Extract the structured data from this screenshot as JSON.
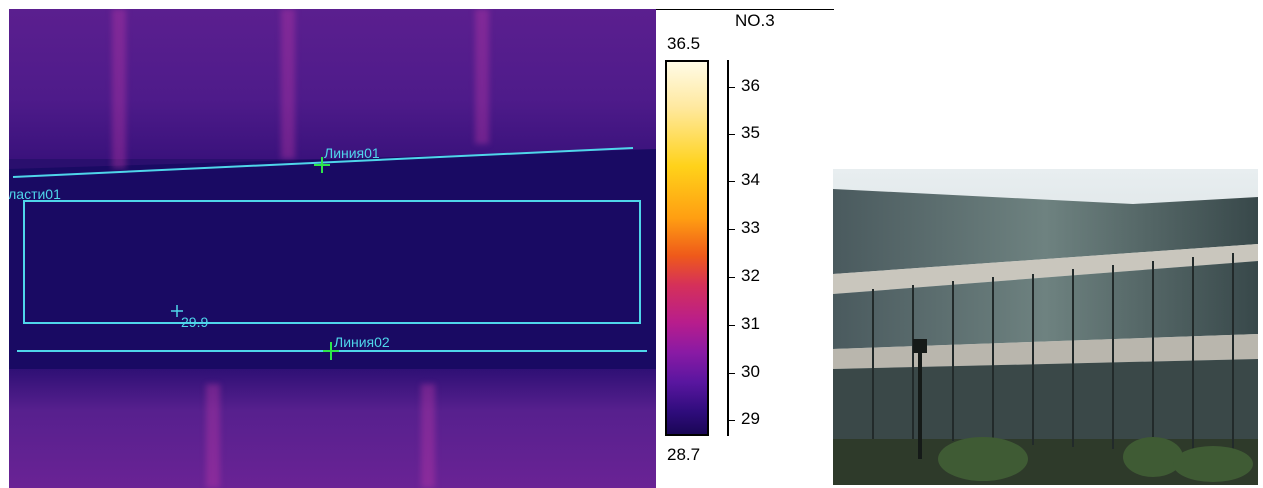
{
  "thermal": {
    "line1_label": "Линия01",
    "line2_label": "Линия02",
    "area_label": "iласти01",
    "spot_value": "29.9"
  },
  "scale": {
    "title": "NO.3",
    "max": "36.5",
    "min": "28.7",
    "ticks": [
      "36",
      "35",
      "34",
      "33",
      "32",
      "31",
      "30",
      "29"
    ]
  },
  "colors": {
    "overlay": "#4fd6ea",
    "marker": "#2ee64a"
  }
}
